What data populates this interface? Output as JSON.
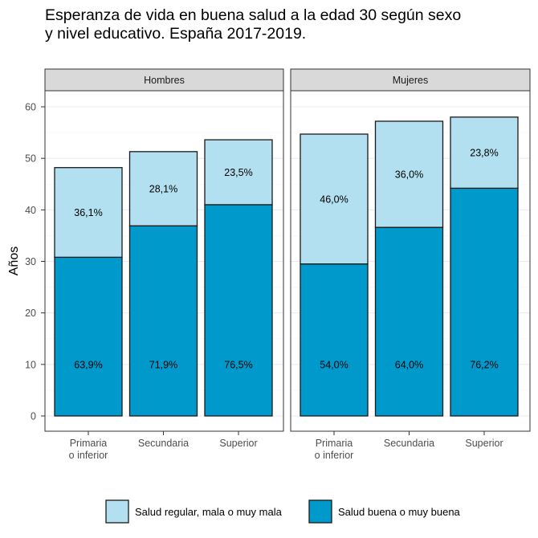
{
  "title_line1": "Esperanza de vida en buena salud a la edad 30 según sexo",
  "title_line2": "y nivel educativo. España 2017-2019.",
  "chart_data": {
    "type": "bar",
    "stacked": true,
    "ylabel": "Años",
    "xlabel": "",
    "ylim": [
      0,
      63
    ],
    "yticks": [
      0,
      10,
      20,
      30,
      40,
      50,
      60
    ],
    "categories": [
      [
        "Primaria",
        "o inferior"
      ],
      [
        "Secundaria"
      ],
      [
        "Superior"
      ]
    ],
    "colors": {
      "regular": "#b3e0f0",
      "buena": "#0099cc"
    },
    "legend": [
      "Salud regular, mala o muy mala",
      "Salud buena o muy buena"
    ],
    "legend_position": "bottom",
    "panels": [
      {
        "name": "Hombres",
        "series": [
          {
            "name": "Salud buena o muy buena",
            "values": [
              30.8,
              36.9,
              41.0
            ],
            "labels": [
              "63,9%",
              "71,9%",
              "76,5%"
            ]
          },
          {
            "name": "Salud regular, mala o muy mala",
            "values": [
              17.4,
              14.4,
              12.6
            ],
            "labels": [
              "36,1%",
              "28,1%",
              "23,5%"
            ]
          }
        ],
        "totals": [
          48.2,
          51.3,
          53.6
        ]
      },
      {
        "name": "Mujeres",
        "series": [
          {
            "name": "Salud buena o muy buena",
            "values": [
              29.5,
              36.6,
              44.2
            ],
            "labels": [
              "54,0%",
              "64,0%",
              "76,2%"
            ]
          },
          {
            "name": "Salud regular, mala o muy mala",
            "values": [
              25.2,
              20.6,
              13.8
            ],
            "labels": [
              "46,0%",
              "36,0%",
              "23,8%"
            ]
          }
        ],
        "totals": [
          54.7,
          57.2,
          58.0
        ]
      }
    ]
  }
}
